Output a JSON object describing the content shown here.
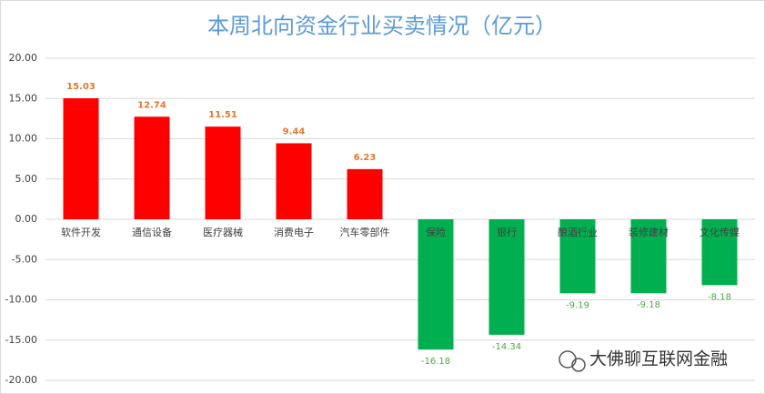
{
  "chart_data": {
    "type": "bar",
    "title": "本周北向资金行业买卖情况（亿元）",
    "categories": [
      "软件开发",
      "通信设备",
      "医疗器械",
      "消费电子",
      "汽车零部件",
      "保险",
      "银行",
      "酿酒行业",
      "装修建材",
      "文化传媒"
    ],
    "values": [
      15.03,
      12.74,
      11.51,
      9.44,
      6.23,
      -16.18,
      -14.34,
      -9.19,
      -9.18,
      -8.18
    ],
    "colors": [
      "#ff0000",
      "#ff0000",
      "#ff0000",
      "#ff0000",
      "#ff0000",
      "#00b050",
      "#00b050",
      "#00b050",
      "#00b050",
      "#00b050"
    ],
    "label_colors": [
      "#e0792f",
      "#e0792f",
      "#e0792f",
      "#e0792f",
      "#e0792f",
      "#4fa846",
      "#4fa846",
      "#4fa846",
      "#4fa846",
      "#4fa846"
    ],
    "ylim": [
      -20,
      20
    ],
    "yticks": [
      {
        "value": 20,
        "label": "20.00"
      },
      {
        "value": 15,
        "label": "15.00"
      },
      {
        "value": 10,
        "label": "10.00"
      },
      {
        "value": 5,
        "label": "5.00"
      },
      {
        "value": 0,
        "label": "0.00"
      },
      {
        "value": -5,
        "label": "-5.00"
      },
      {
        "value": -10,
        "label": "-10.00"
      },
      {
        "value": -15,
        "label": "-15.00"
      },
      {
        "value": -20,
        "label": "-20.00"
      }
    ],
    "grid": true,
    "watermark": "大佛聊互联网金融"
  }
}
